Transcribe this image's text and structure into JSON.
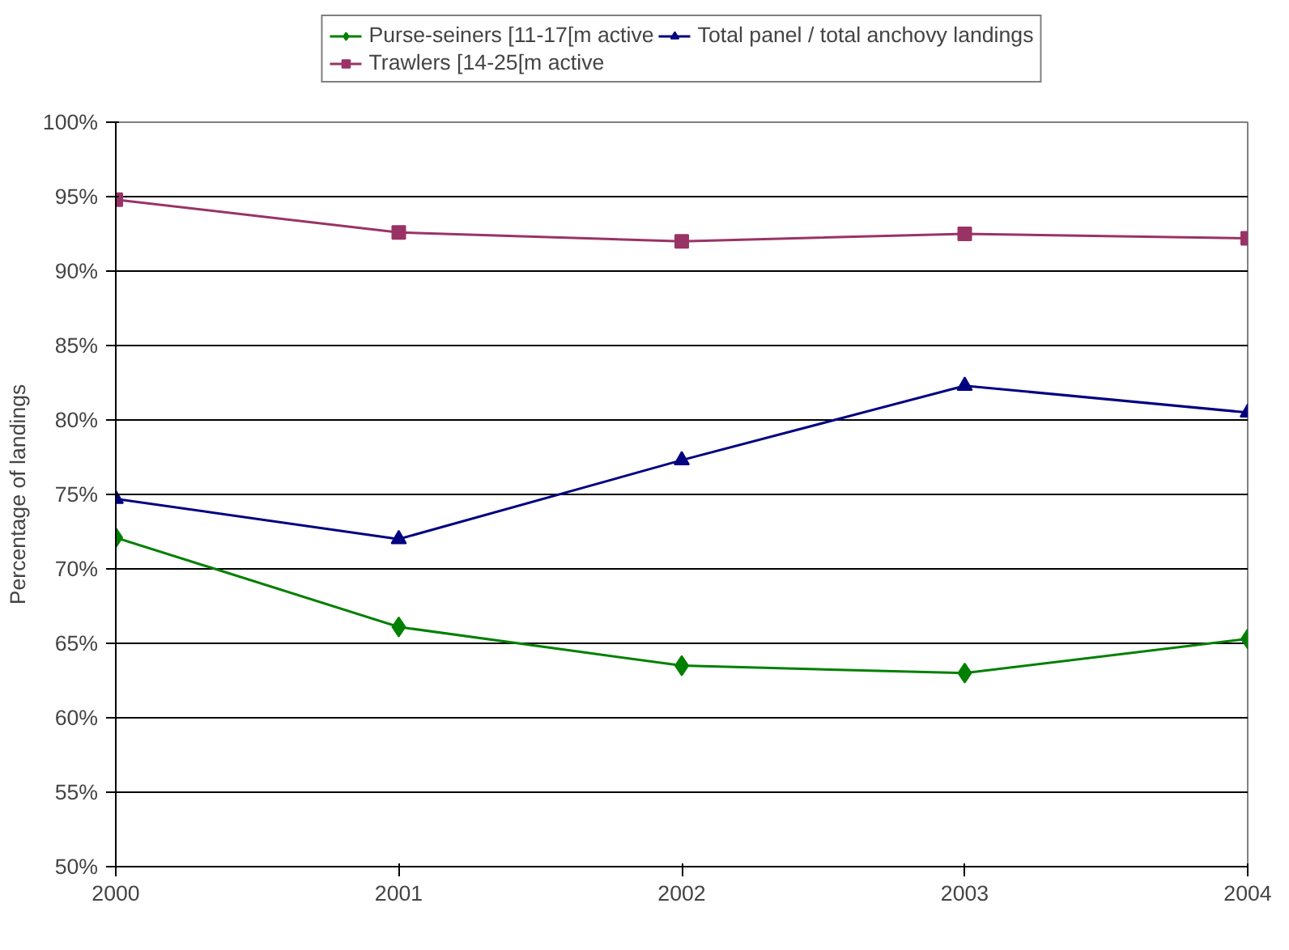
{
  "chart_data": {
    "type": "line",
    "ylabel": "Percentage of landings",
    "x": [
      2000,
      2001,
      2002,
      2003,
      2004
    ],
    "xlim": [
      2000,
      2004
    ],
    "xticks": [
      2000,
      2001,
      2002,
      2003,
      2004
    ],
    "ylim": [
      50,
      100
    ],
    "yticks": [
      {
        "value": 50,
        "label": "50%"
      },
      {
        "value": 55,
        "label": "55%"
      },
      {
        "value": 60,
        "label": "60%"
      },
      {
        "value": 65,
        "label": "65%"
      },
      {
        "value": 70,
        "label": "70%"
      },
      {
        "value": 75,
        "label": "75%"
      },
      {
        "value": 80,
        "label": "80%"
      },
      {
        "value": 85,
        "label": "85%"
      },
      {
        "value": 90,
        "label": "90%"
      },
      {
        "value": 95,
        "label": "95%"
      },
      {
        "value": 100,
        "label": "100%"
      }
    ],
    "grid": "y",
    "legend": "top",
    "line_style": "solid",
    "series": [
      {
        "name": "Purse-seiners [11-17[m active",
        "color": "#008000",
        "marker": "diamond",
        "values": [
          72.1,
          66.1,
          63.5,
          63.0,
          65.3
        ]
      },
      {
        "name": "Trawlers [14-25[m active",
        "color": "#993366",
        "marker": "square",
        "values": [
          94.8,
          92.6,
          92.0,
          92.5,
          92.2
        ]
      },
      {
        "name": "Total panel / total anchovy landings",
        "color": "#000080",
        "marker": "triangle",
        "values": [
          74.7,
          72.0,
          77.3,
          82.3,
          80.5
        ]
      }
    ]
  }
}
